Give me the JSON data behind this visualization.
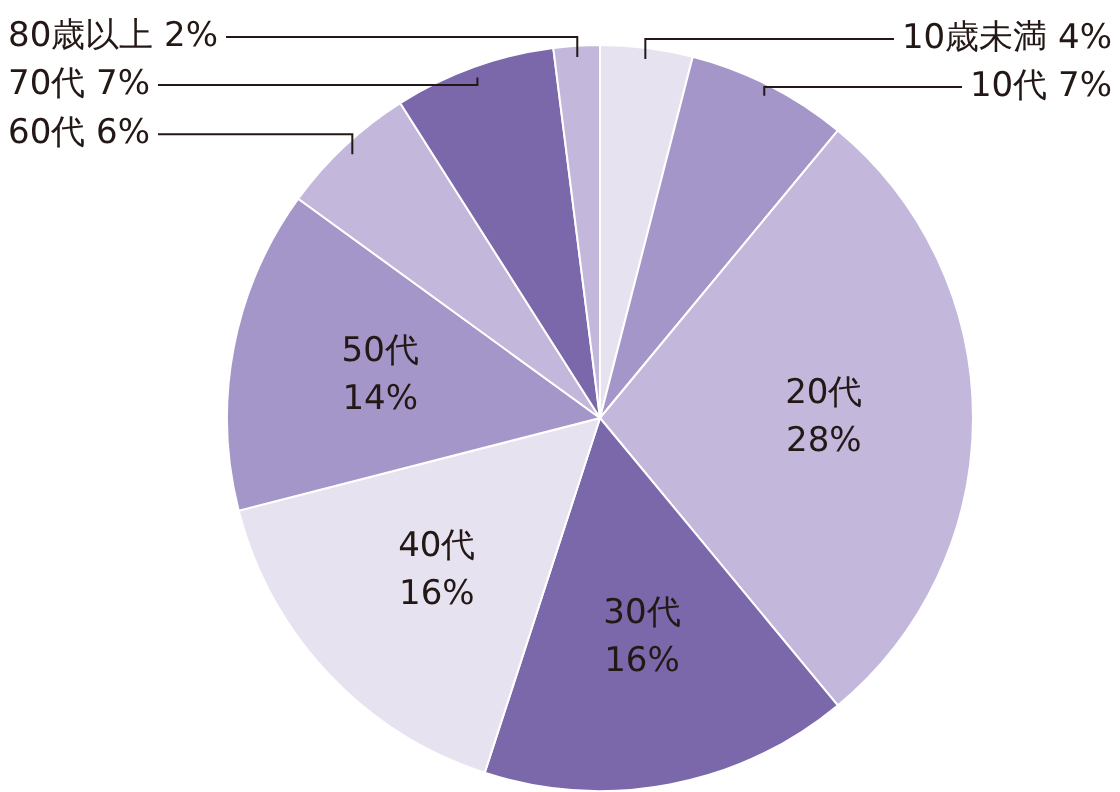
{
  "chart_data": {
    "type": "pie",
    "categories": [
      "10歳未満",
      "10代",
      "20代",
      "30代",
      "40代",
      "50代",
      "60代",
      "70代",
      "80歳以上"
    ],
    "values": [
      4,
      7,
      28,
      16,
      16,
      14,
      6,
      7,
      2
    ],
    "colors": [
      "#e6e2f0",
      "#a496c8",
      "#c3b8dc",
      "#7b68ab",
      "#e6e2f0",
      "#a496c8",
      "#c3b8dc",
      "#7b68ab",
      "#c3b8dc"
    ],
    "value_labels": [
      "4%",
      "7%",
      "28%",
      "16%",
      "16%",
      "14%",
      "6%",
      "7%",
      "2%"
    ],
    "legend": false
  }
}
